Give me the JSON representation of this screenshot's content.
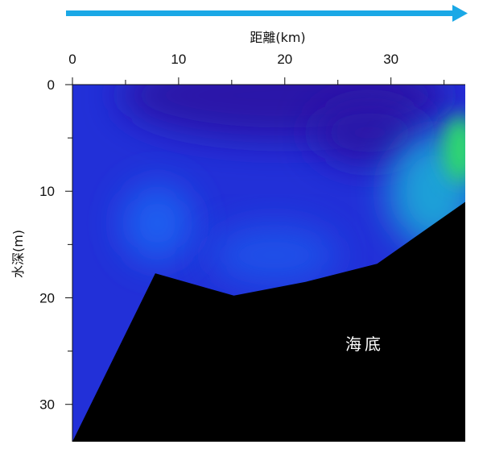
{
  "chart_data": {
    "type": "heatmap",
    "title": "",
    "xlabel": "距離(km)",
    "ylabel": "水深(m)",
    "x_axis_position": "top",
    "y_axis_inverted": true,
    "xlim": [
      0,
      37
    ],
    "ylim": [
      0,
      33.5
    ],
    "x_ticks": [
      0,
      10,
      20,
      30
    ],
    "y_ticks": [
      0,
      10,
      20,
      30
    ],
    "x_tick_labels": [
      "0",
      "10",
      "20",
      "30"
    ],
    "y_tick_labels": [
      "0",
      "10",
      "20",
      "30"
    ],
    "grid": false,
    "direction_arrow": "left-to-right",
    "seafloor_label": "海底",
    "seafloor_profile": [
      {
        "x": 0,
        "depth": 33.5
      },
      {
        "x": 7.8,
        "depth": 17.7
      },
      {
        "x": 15.2,
        "depth": 19.8
      },
      {
        "x": 22,
        "depth": 18.5
      },
      {
        "x": 28.7,
        "depth": 16.8
      },
      {
        "x": 37,
        "depth": 11.0
      }
    ],
    "colormap": [
      "#2a12a8",
      "#1b2ad6",
      "#1e5ef0",
      "#1aa0d8",
      "#2fd870"
    ],
    "field_features": [
      {
        "x": 8,
        "depth": 13,
        "level": "medium"
      },
      {
        "x": 22,
        "depth": 2,
        "level": "low"
      },
      {
        "x": 36.5,
        "depth": 6,
        "level": "high"
      }
    ],
    "colors": {
      "arrow": "#1aa8e6",
      "seafloor": "#000000",
      "background": "#2230d8"
    }
  }
}
